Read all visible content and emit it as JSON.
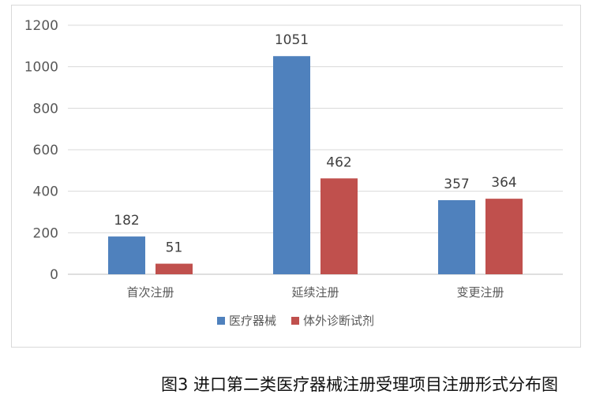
{
  "chart_data": {
    "type": "bar",
    "categories": [
      "首次注册",
      "延续注册",
      "变更注册"
    ],
    "series": [
      {
        "name": "医疗器械",
        "values": [
          182,
          1051,
          357
        ],
        "color": "#4f81bd"
      },
      {
        "name": "体外诊断试剂",
        "values": [
          51,
          462,
          364
        ],
        "color": "#c0504d"
      }
    ],
    "ylim": [
      0,
      1200
    ],
    "yticks": [
      0,
      200,
      400,
      600,
      800,
      1000,
      1200
    ],
    "grid": true,
    "legend_position": "bottom"
  },
  "caption": "图3 进口第二类医疗器械注册受理项目注册形式分布图"
}
